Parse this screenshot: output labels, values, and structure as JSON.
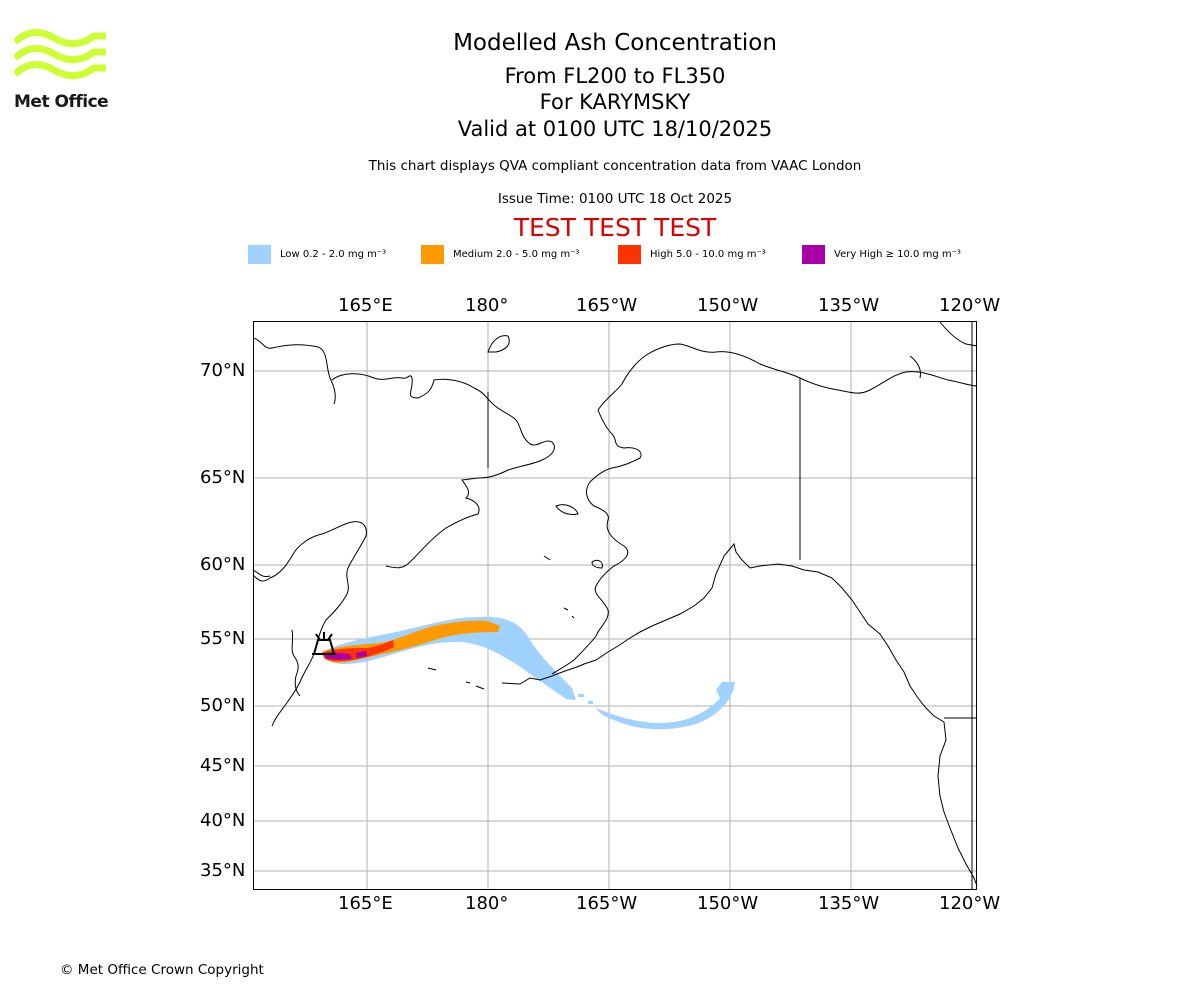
{
  "header": {
    "title": "Modelled Ash Concentration",
    "flight_levels": "From FL200 to FL350",
    "volcano": "For KARYMSKY",
    "valid_time": "Valid at 0100 UTC 18/10/2025",
    "description": "This chart displays QVA compliant concentration data from VAAC London",
    "issue_time": "Issue Time: 0100 UTC 18 Oct 2025",
    "test_banner": "TEST TEST TEST",
    "test_color": "#dd0000"
  },
  "logo": {
    "text": "Met Office",
    "icon": "met-office-wave-logo",
    "color": "#ccff33"
  },
  "legend": [
    {
      "label": "Low 0.2 - 2.0 mg m⁻³",
      "color": "#a0d2ff"
    },
    {
      "label": "Medium 2.0 - 5.0 mg m⁻³",
      "color": "#ff9900"
    },
    {
      "label": "High 5.0 - 10.0 mg m⁻³",
      "color": "#ff3300"
    },
    {
      "label": "Very High ≥ 10.0 mg m⁻³",
      "color": "#aa00aa"
    }
  ],
  "map": {
    "lon_labels": [
      "165°E",
      "180°",
      "165°W",
      "150°W",
      "135°W",
      "120°W"
    ],
    "lat_labels": [
      "70°N",
      "65°N",
      "60°N",
      "55°N",
      "50°N",
      "45°N",
      "40°N",
      "35°N"
    ],
    "gridlines": true,
    "volcano_marker": "volcano-symbol"
  },
  "footer": {
    "copyright": "© Met Office Crown Copyright"
  }
}
